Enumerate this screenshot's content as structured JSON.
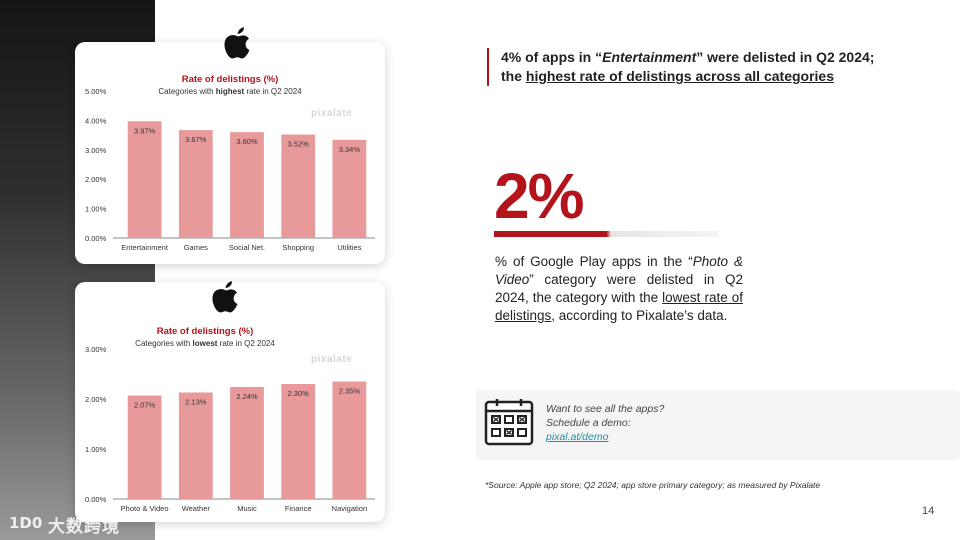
{
  "slide": {
    "headline_pre": "4% of apps in “",
    "headline_category": "Entertainment",
    "headline_mid": "” were delisted in Q2 2024;",
    "headline_the": "the",
    "headline_underlined": "highest rate of delistings across all categories",
    "big_stat": "2%",
    "desc_p1": "% of Google Play apps in the “",
    "desc_category": "Photo & Video",
    "desc_p2": "”  category were delisted in Q2 2024, the category with the",
    "desc_underlined": "lowest rate of delistings",
    "desc_p3": ",  according to Pixalate’s data.",
    "cta_text": "Want to see all the apps? Schedule a demo:",
    "cta_link": "pixal.at/demo",
    "source": "*Source: Apple app store; Q2 2024; app store primary category; as measured by Pixalate",
    "page_number": "14",
    "logo_text": "大数跨境",
    "logo_mark": "1D0"
  },
  "colors": {
    "accent": "#b3141c",
    "bar": "#e89a9b",
    "link": "#1f8fa8"
  },
  "icons": [
    "apple-icon",
    "calendar-icon"
  ],
  "chart_data": [
    {
      "type": "bar",
      "title": "Rate of delistings (%)",
      "subtitle_pre": "Categories with ",
      "subtitle_bold": "highest",
      "subtitle_post": " rate in Q2 2024",
      "watermark": "pixalate",
      "categories": [
        "Entertainment",
        "Games",
        "Social Net.",
        "Shopping",
        "Utilities"
      ],
      "values": [
        3.97,
        3.67,
        3.6,
        3.52,
        3.34
      ],
      "value_labels": [
        "3.97%",
        "3.67%",
        "3.60%",
        "3.52%",
        "3.34%"
      ],
      "yticks": [
        "0.00%",
        "1.00%",
        "2.00%",
        "3.00%",
        "4.00%",
        "5.00%"
      ],
      "ylim": [
        0,
        5
      ],
      "grid": false
    },
    {
      "type": "bar",
      "title": "Rate of delistings (%)",
      "subtitle_pre": "Categories with ",
      "subtitle_bold": "lowest",
      "subtitle_post": " rate in Q2 2024",
      "watermark": "pixalate",
      "categories": [
        "Photo & Video",
        "Weather",
        "Music",
        "Finance",
        "Navigation"
      ],
      "values": [
        2.07,
        2.13,
        2.24,
        2.3,
        2.35
      ],
      "value_labels": [
        "2.07%",
        "2.13%",
        "2.24%",
        "2.30%",
        "2.35%"
      ],
      "yticks": [
        "0.00%",
        "1.00%",
        "2.00%",
        "3.00%"
      ],
      "ylim": [
        0,
        3
      ],
      "grid": false
    }
  ]
}
